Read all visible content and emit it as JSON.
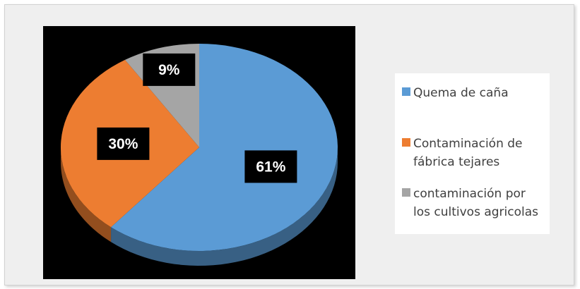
{
  "chart_data": {
    "type": "pie",
    "title": "",
    "style": "3d",
    "categories": [
      "Quema de caña",
      "Contaminación de fábrica tejares",
      "contaminación por los cultivos agricolas"
    ],
    "values": [
      61,
      30,
      9
    ],
    "labels": [
      "61%",
      "30%",
      "9%"
    ],
    "colors": [
      "#5b9bd5",
      "#ed7d31",
      "#a5a5a5"
    ],
    "legend_position": "right",
    "background": "#000000"
  },
  "legend": {
    "items": [
      {
        "label": "Quema de caña",
        "color": "#5b9bd5"
      },
      {
        "label": "Contaminación de fábrica tejares",
        "color": "#ed7d31"
      },
      {
        "label": "contaminación por los cultivos agricolas",
        "color": "#a5a5a5"
      }
    ]
  }
}
